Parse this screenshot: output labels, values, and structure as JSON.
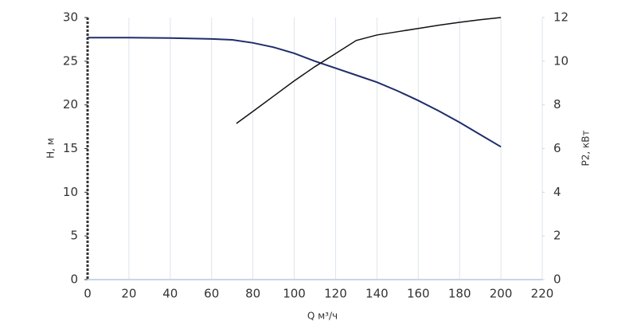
{
  "chart_data": {
    "type": "line",
    "xlabel": "Q м³/ч",
    "ylabel": "H, м",
    "y2label": "P2, кВт",
    "xlim": [
      0,
      220
    ],
    "xticks": [
      0,
      20,
      40,
      60,
      80,
      100,
      120,
      140,
      160,
      180,
      200,
      220
    ],
    "ylim": [
      0,
      30
    ],
    "yticks": [
      0,
      5,
      10,
      15,
      20,
      25,
      30
    ],
    "y2lim": [
      0,
      12
    ],
    "y2ticks": [
      0,
      2,
      4,
      6,
      8,
      10,
      12
    ],
    "grid": true,
    "series": [
      {
        "color": "#1f2d6b",
        "x": [
          0,
          20,
          40,
          60,
          70,
          80,
          90,
          100,
          110,
          120,
          130,
          140,
          150,
          160,
          170,
          180,
          190,
          200
        ],
        "values": [
          27.7,
          27.7,
          27.65,
          27.55,
          27.45,
          27.1,
          26.6,
          25.9,
          25.0,
          24.2,
          23.4,
          22.6,
          21.6,
          20.5,
          19.3,
          18.0,
          16.6,
          15.2
        ]
      },
      {
        "color": "#111111",
        "axis": "y2",
        "x": [
          72,
          80,
          90,
          100,
          110,
          120,
          130,
          140,
          150,
          160,
          170,
          180,
          190,
          200
        ],
        "values": [
          7.15,
          7.7,
          8.4,
          9.1,
          9.75,
          10.35,
          10.95,
          11.2,
          11.35,
          11.5,
          11.65,
          11.78,
          11.9,
          12.0
        ]
      }
    ]
  }
}
